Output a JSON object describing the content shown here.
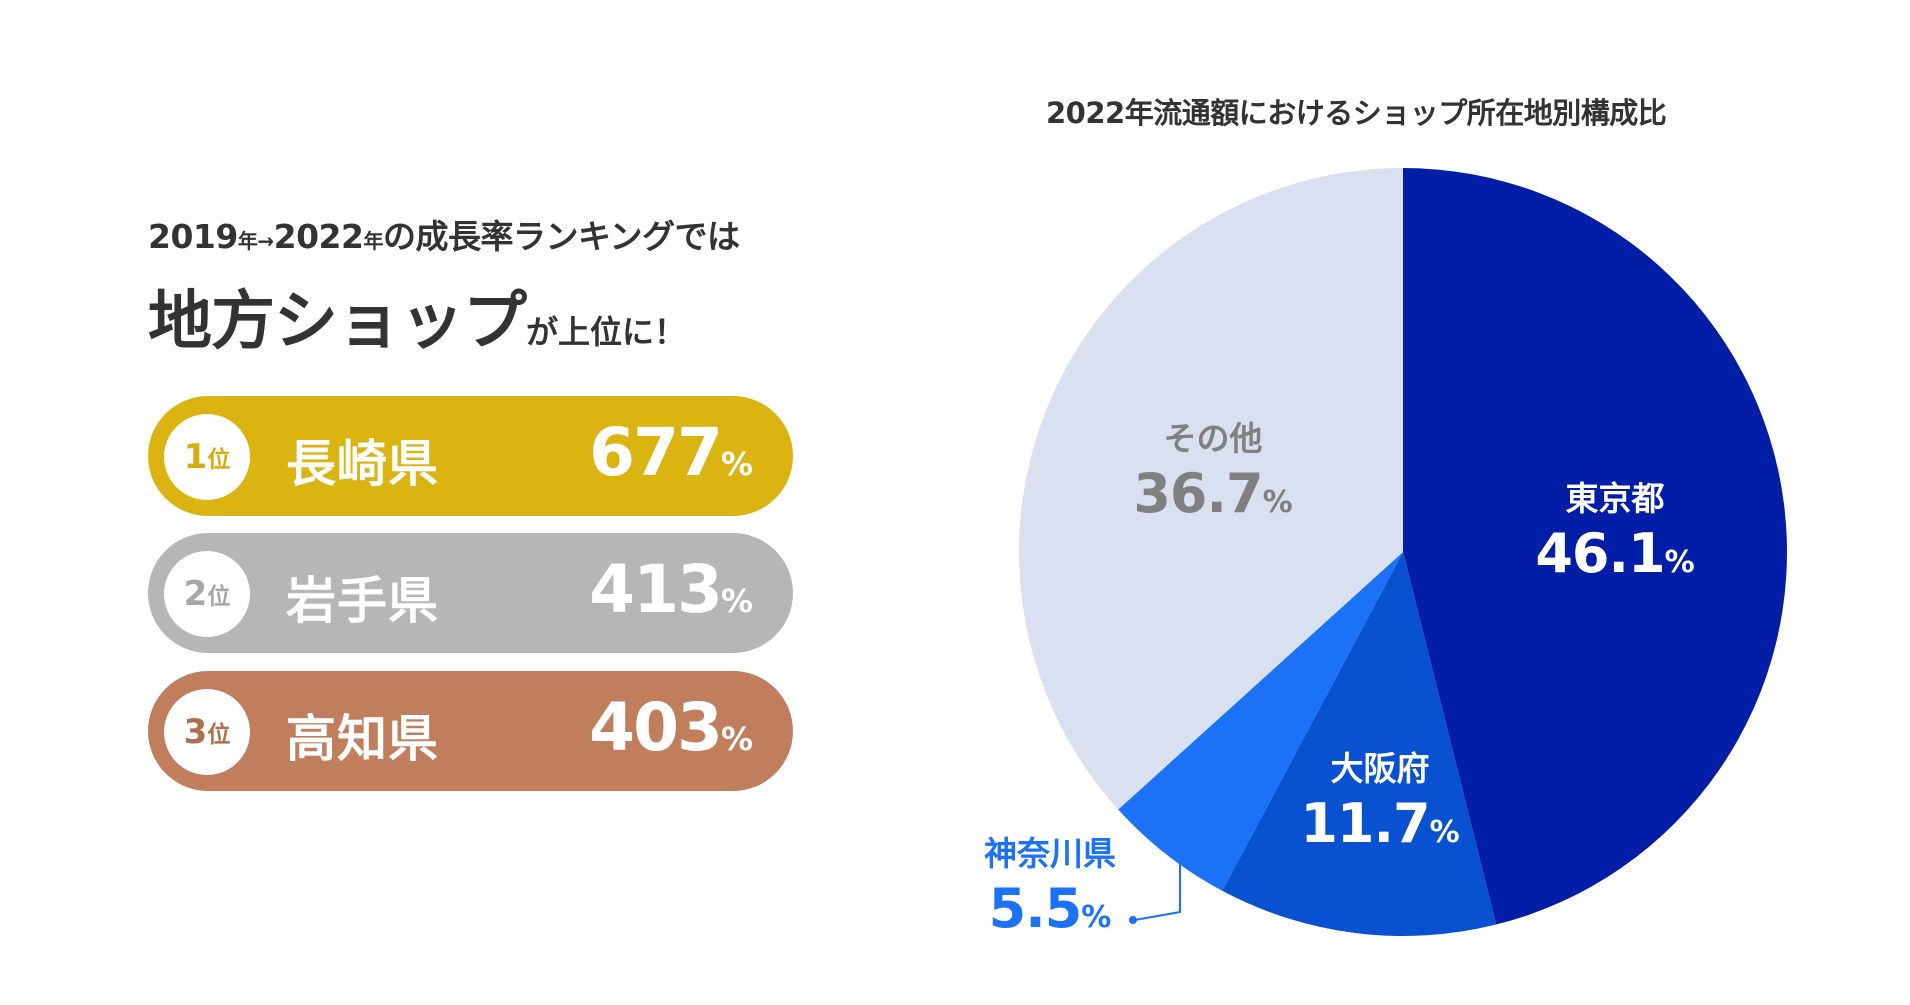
{
  "left_panel": {
    "subhead": {
      "y1": "2019",
      "y1_unit": "年",
      "arrow": "→",
      "y2": "2022",
      "y2_unit": "年",
      "rest": "の成長率ランキングでは"
    },
    "headline": {
      "main": "地方ショップ",
      "tail": "が上位に！"
    },
    "ranking": [
      {
        "rank": "1",
        "unit": "位",
        "prefecture": "長崎県",
        "growth": "677",
        "percent": "%",
        "color": "#dbb412"
      },
      {
        "rank": "2",
        "unit": "位",
        "prefecture": "岩手県",
        "growth": "413",
        "percent": "%",
        "color": "#b6b6b6"
      },
      {
        "rank": "3",
        "unit": "位",
        "prefecture": "高知県",
        "growth": "403",
        "percent": "%",
        "color": "#c07e5c"
      }
    ]
  },
  "chart_data": {
    "type": "pie",
    "title": "2022年流通額におけるショップ所在地別構成比",
    "slices": [
      {
        "label": "東京都",
        "value": 46.1,
        "color": "#031ea6",
        "text_color": "#ffffff"
      },
      {
        "label": "大阪府",
        "value": 11.7,
        "color": "#0852d1",
        "text_color": "#ffffff"
      },
      {
        "label": "神奈川県",
        "value": 5.5,
        "color": "#1b72f6",
        "text_color": "#1b72f6"
      },
      {
        "label": "その他",
        "value": 36.7,
        "color": "#d9e1f1",
        "text_color": "#808080"
      }
    ],
    "percent_symbol": "%",
    "start": "12 o'clock",
    "direction": "clockwise"
  }
}
